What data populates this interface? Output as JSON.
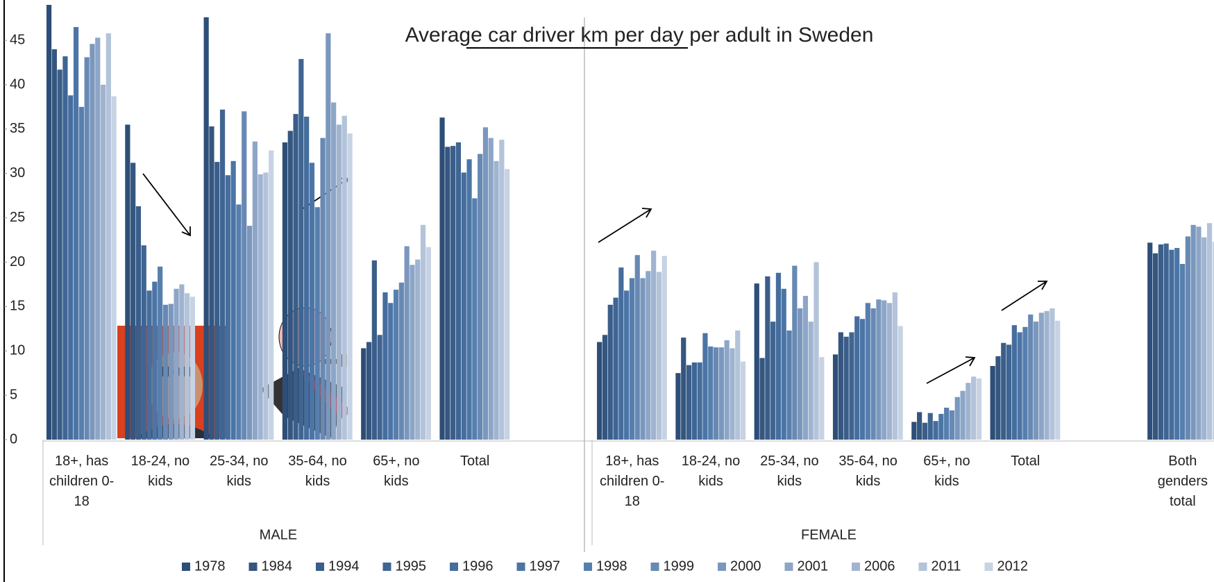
{
  "chart_data": {
    "type": "bar",
    "title": "Average car driver km per day per adult in Sweden",
    "categories": [
      "18+, has children 0-18",
      "18-24, no kids",
      "25-34, no kids",
      "35-64, no kids",
      "65+, no kids",
      "Total",
      "18+, has children 0-18",
      "18-24, no kids",
      "25-34, no kids",
      "35-64, no kids",
      "65+, no kids",
      "Total",
      "Both genders total"
    ],
    "group_labels": [
      "MALE",
      "FEMALE"
    ],
    "ylim": [
      0,
      49
    ],
    "yticks": [
      0,
      5,
      10,
      15,
      20,
      25,
      30,
      35,
      40,
      45
    ],
    "legend": "bottom",
    "series": [
      {
        "name": "1978",
        "color": "#2d4e78",
        "values": [
          49,
          35.5,
          47.6,
          33.5,
          10.3,
          36.3,
          11.0,
          7.5,
          17.6,
          9.6,
          2.0,
          8.3,
          22.2
        ]
      },
      {
        "name": "1984",
        "color": "#34567f",
        "values": [
          44,
          31.2,
          35.3,
          34.8,
          11.0,
          33.0,
          11.8,
          11.5,
          9.2,
          12.1,
          3.1,
          9.4,
          21.0
        ]
      },
      {
        "name": "1994",
        "color": "#3a5e89",
        "values": [
          41.7,
          26.3,
          31.3,
          36.7,
          20.2,
          33.1,
          15.2,
          8.4,
          18.4,
          11.6,
          1.9,
          10.9,
          22.0
        ]
      },
      {
        "name": "1995",
        "color": "#3f6593",
        "values": [
          43.2,
          21.9,
          37.2,
          42.9,
          11.8,
          33.5,
          16.0,
          8.7,
          13.3,
          12.1,
          3.0,
          10.7,
          22.1
        ]
      },
      {
        "name": "1996",
        "color": "#456d9d",
        "values": [
          38.8,
          16.8,
          29.8,
          36.4,
          16.6,
          30.1,
          19.4,
          8.7,
          18.8,
          13.9,
          2.1,
          12.9,
          21.4
        ]
      },
      {
        "name": "1997",
        "color": "#4b75a6",
        "values": [
          46.5,
          17.8,
          31.4,
          31.2,
          15.4,
          31.6,
          16.8,
          12.0,
          17.0,
          13.6,
          2.9,
          12.1,
          21.6
        ]
      },
      {
        "name": "1998",
        "color": "#577fae",
        "values": [
          37.5,
          19.5,
          26.5,
          26.2,
          16.9,
          27.2,
          18.2,
          10.5,
          12.3,
          15.4,
          3.6,
          12.7,
          19.8
        ]
      },
      {
        "name": "1999",
        "color": "#6889b4",
        "values": [
          43.1,
          15.2,
          37.0,
          34.0,
          17.7,
          32.2,
          20.8,
          10.4,
          19.6,
          14.8,
          3.3,
          14.1,
          22.9
        ]
      },
      {
        "name": "2000",
        "color": "#7a97bd",
        "values": [
          44.6,
          15.3,
          24.1,
          45.8,
          21.8,
          35.2,
          18.2,
          10.4,
          14.8,
          15.8,
          4.8,
          13.3,
          24.2
        ]
      },
      {
        "name": "2001",
        "color": "#8da6c7",
        "values": [
          45.3,
          17.0,
          33.6,
          38.0,
          19.7,
          34.0,
          19.0,
          11.2,
          16.2,
          15.7,
          5.5,
          14.3,
          24.0
        ]
      },
      {
        "name": "2006",
        "color": "#a0b4d0",
        "values": [
          40,
          17.5,
          29.9,
          35.5,
          20.3,
          31.4,
          21.3,
          10.3,
          13.3,
          15.4,
          6.4,
          14.5,
          22.8
        ]
      },
      {
        "name": "2011",
        "color": "#b3c3da",
        "values": [
          45.8,
          16.5,
          30.1,
          36.5,
          24.2,
          33.8,
          18.9,
          12.3,
          20.0,
          16.6,
          7.1,
          14.8,
          24.4
        ]
      },
      {
        "name": "2012",
        "color": "#c7d3e4",
        "values": [
          38.7,
          16.1,
          32.6,
          34.5,
          21.7,
          30.5,
          20.7,
          8.8,
          9.3,
          12.8,
          6.9,
          13.4,
          22.3
        ]
      }
    ]
  }
}
